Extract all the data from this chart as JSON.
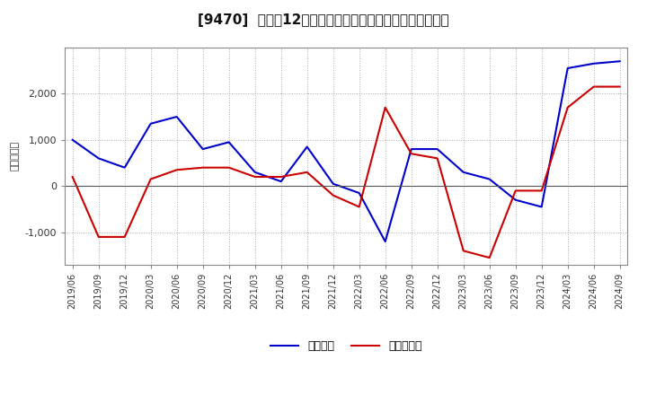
{
  "title": "[9470]  利益だ12か月移動合計の対前年同期増減額の推移",
  "ylabel": "（百万円）",
  "background_color": "#ffffff",
  "plot_bg_color": "#ffffff",
  "grid_color": "#aaaaaa",
  "dates": [
    "2019/06",
    "2019/09",
    "2019/12",
    "2020/03",
    "2020/06",
    "2020/09",
    "2020/12",
    "2021/03",
    "2021/06",
    "2021/09",
    "2021/12",
    "2022/03",
    "2022/06",
    "2022/09",
    "2022/12",
    "2023/03",
    "2023/06",
    "2023/09",
    "2023/12",
    "2024/03",
    "2024/06",
    "2024/09"
  ],
  "keijo_rieki": [
    1000,
    600,
    400,
    1350,
    1500,
    800,
    950,
    300,
    100,
    850,
    50,
    -150,
    -1200,
    800,
    800,
    300,
    150,
    -300,
    -450,
    2550,
    2650,
    2700
  ],
  "tokki_junrieki": [
    200,
    -1100,
    -1100,
    150,
    350,
    400,
    400,
    200,
    200,
    300,
    -200,
    -450,
    1700,
    700,
    600,
    -1400,
    -1550,
    -100,
    -100,
    1700,
    2150,
    2150
  ],
  "blue_color": "#0000cc",
  "red_color": "#cc0000",
  "line_width": 1.5,
  "ylim": [
    -1700,
    3000
  ],
  "yticks": [
    -1000,
    0,
    1000,
    2000
  ],
  "legend_labels": [
    "経常利益",
    "当期純利益"
  ]
}
